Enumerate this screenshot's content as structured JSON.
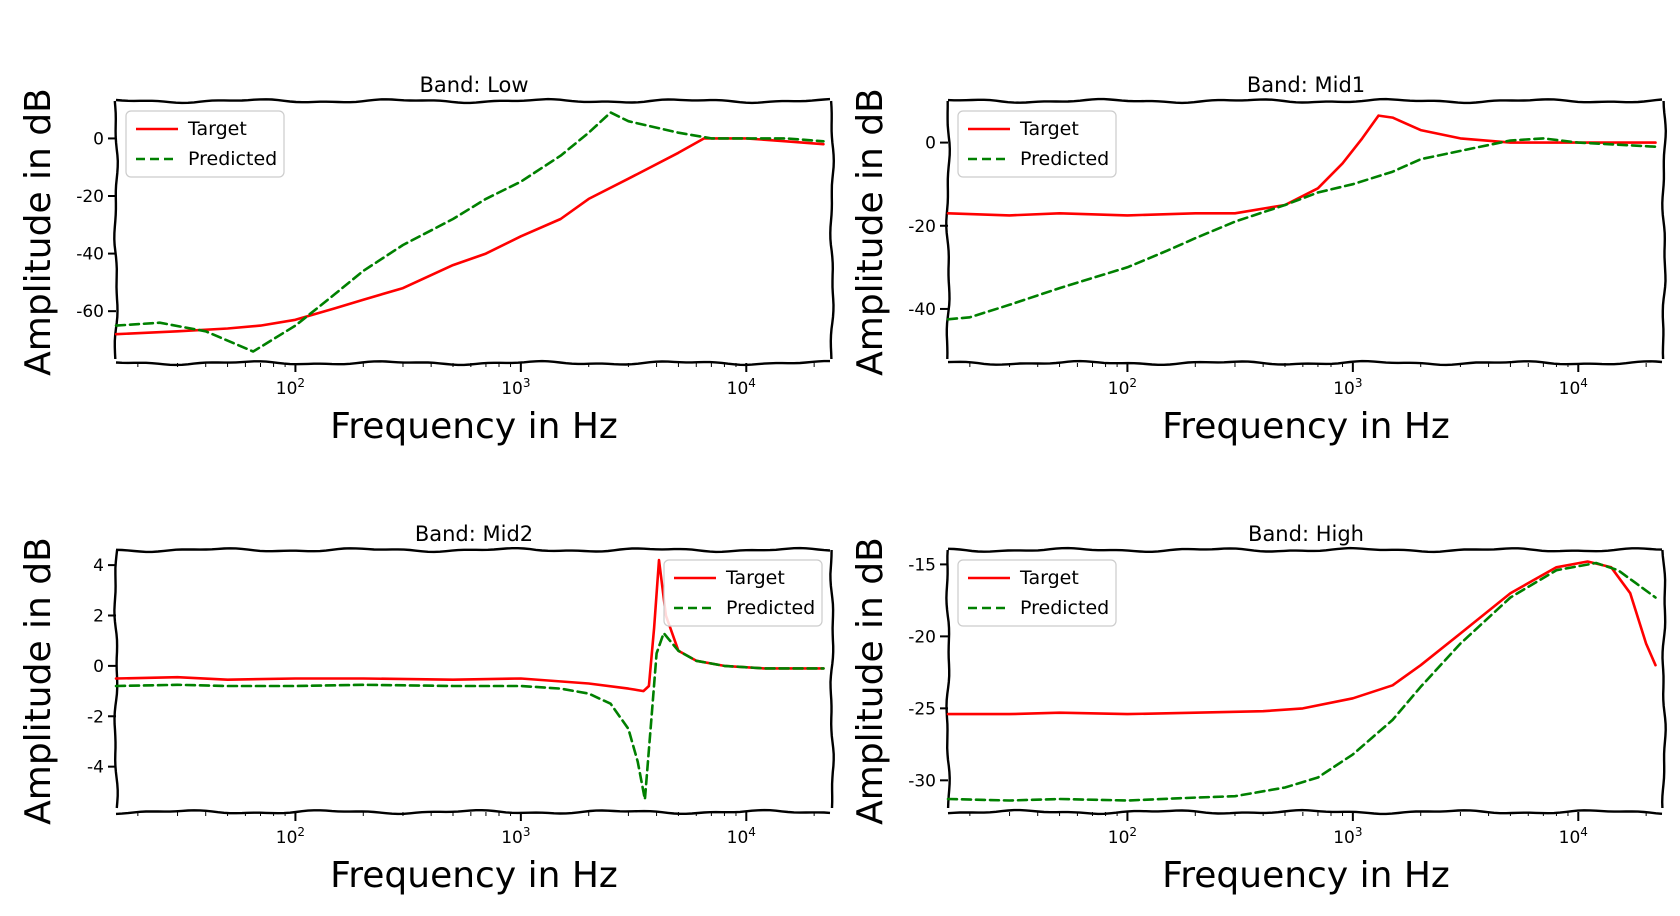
{
  "chart_data": [
    {
      "type": "line",
      "title": "Band: Low",
      "xlabel": "Frequency in Hz",
      "ylabel": "Amplitude in dB",
      "xscale": "log",
      "xlim": [
        16,
        24000
      ],
      "ylim": [
        -78,
        13
      ],
      "yticks": [
        0,
        -20,
        -40,
        -60
      ],
      "ytick_labels": [
        "0",
        "-20",
        "-40",
        "-60"
      ],
      "xticks": [
        100,
        1000,
        10000
      ],
      "xtick_labels": [
        "10",
        "10",
        "10"
      ],
      "xtick_exponents": [
        "2",
        "3",
        "4"
      ],
      "legend": {
        "position": "upper left",
        "entries": [
          "Target",
          "Predicted"
        ]
      },
      "series": [
        {
          "name": "Target",
          "color": "#ff0000",
          "style": "solid",
          "x": [
            16,
            30,
            50,
            70,
            100,
            150,
            200,
            300,
            500,
            700,
            1000,
            1500,
            2000,
            3000,
            5000,
            6500,
            8000,
            10000,
            15000,
            22000
          ],
          "y": [
            -68,
            -67,
            -66,
            -65,
            -63,
            -59,
            -56,
            -52,
            -44,
            -40,
            -34,
            -28,
            -21,
            -14,
            -5,
            0,
            0,
            0,
            -1,
            -2
          ]
        },
        {
          "name": "Predicted",
          "color": "#008000",
          "style": "dashed",
          "x": [
            16,
            25,
            40,
            65,
            100,
            150,
            200,
            300,
            500,
            700,
            1000,
            1500,
            2000,
            2500,
            3000,
            5000,
            7000,
            10000,
            15000,
            22000
          ],
          "y": [
            -65,
            -64,
            -67,
            -74,
            -65,
            -54,
            -46,
            -37,
            -28,
            -21,
            -15,
            -6,
            2,
            9,
            6,
            2,
            0,
            0,
            0,
            -1
          ]
        }
      ]
    },
    {
      "type": "line",
      "title": "Band: Mid1",
      "xlabel": "Frequency in Hz",
      "ylabel": "Amplitude in dB",
      "xscale": "log",
      "xlim": [
        16,
        24000
      ],
      "ylim": [
        -53,
        10
      ],
      "yticks": [
        0,
        -20,
        -40
      ],
      "ytick_labels": [
        "0",
        "-20",
        "-40"
      ],
      "xticks": [
        100,
        1000,
        10000
      ],
      "xtick_labels": [
        "10",
        "10",
        "10"
      ],
      "xtick_exponents": [
        "2",
        "3",
        "4"
      ],
      "legend": {
        "position": "upper left",
        "entries": [
          "Target",
          "Predicted"
        ]
      },
      "series": [
        {
          "name": "Target",
          "color": "#ff0000",
          "style": "solid",
          "x": [
            16,
            30,
            50,
            100,
            200,
            300,
            500,
            700,
            900,
            1100,
            1300,
            1500,
            2000,
            3000,
            5000,
            8000,
            12000,
            22000
          ],
          "y": [
            -17,
            -17.5,
            -17,
            -17.5,
            -17,
            -17,
            -15,
            -11,
            -5,
            1,
            6.5,
            6,
            3,
            1,
            0,
            0,
            0,
            0
          ]
        },
        {
          "name": "Predicted",
          "color": "#008000",
          "style": "dashed",
          "x": [
            16,
            20,
            30,
            50,
            100,
            150,
            200,
            300,
            500,
            700,
            1000,
            1500,
            2000,
            3000,
            5000,
            7000,
            10000,
            15000,
            22000
          ],
          "y": [
            -42.5,
            -42,
            -39,
            -35,
            -30,
            -26,
            -23,
            -19,
            -15,
            -12,
            -10,
            -7,
            -4,
            -2,
            0.5,
            1,
            0,
            -0.5,
            -1
          ]
        }
      ]
    },
    {
      "type": "line",
      "title": "Band: Mid2",
      "xlabel": "Frequency in Hz",
      "ylabel": "Amplitude in dB",
      "xscale": "log",
      "xlim": [
        16,
        24000
      ],
      "ylim": [
        -5.8,
        4.6
      ],
      "yticks": [
        4,
        2,
        0,
        -2,
        -4
      ],
      "ytick_labels": [
        "4",
        "2",
        "0",
        "-2",
        "-4"
      ],
      "xticks": [
        100,
        1000,
        10000
      ],
      "xtick_labels": [
        "10",
        "10",
        "10"
      ],
      "xtick_exponents": [
        "2",
        "3",
        "4"
      ],
      "legend": {
        "position": "upper right",
        "entries": [
          "Target",
          "Predicted"
        ]
      },
      "series": [
        {
          "name": "Target",
          "color": "#ff0000",
          "style": "solid",
          "x": [
            16,
            30,
            50,
            100,
            200,
            500,
            1000,
            2000,
            3000,
            3500,
            3700,
            3900,
            4100,
            4400,
            5000,
            6000,
            8000,
            12000,
            22000
          ],
          "y": [
            -0.5,
            -0.45,
            -0.55,
            -0.5,
            -0.5,
            -0.55,
            -0.5,
            -0.7,
            -0.9,
            -1.0,
            -0.8,
            1.5,
            4.2,
            2.0,
            0.6,
            0.2,
            0.0,
            -0.1,
            -0.1
          ]
        },
        {
          "name": "Predicted",
          "color": "#008000",
          "style": "dashed",
          "x": [
            16,
            30,
            50,
            100,
            200,
            500,
            1000,
            1500,
            2000,
            2500,
            3000,
            3300,
            3550,
            3800,
            4000,
            4300,
            5000,
            6000,
            8000,
            12000,
            22000
          ],
          "y": [
            -0.8,
            -0.75,
            -0.8,
            -0.8,
            -0.75,
            -0.8,
            -0.8,
            -0.9,
            -1.1,
            -1.5,
            -2.5,
            -3.8,
            -5.3,
            -2.0,
            0.5,
            1.3,
            0.6,
            0.2,
            0.0,
            -0.1,
            -0.1
          ]
        }
      ]
    },
    {
      "type": "line",
      "title": "Band: High",
      "xlabel": "Frequency in Hz",
      "ylabel": "Amplitude in dB",
      "xscale": "log",
      "xlim": [
        16,
        24000
      ],
      "ylim": [
        -32.2,
        -14.0
      ],
      "yticks": [
        -15,
        -20,
        -25,
        -30
      ],
      "ytick_labels": [
        "-15",
        "-20",
        "-25",
        "-30"
      ],
      "xticks": [
        100,
        1000,
        10000
      ],
      "xtick_labels": [
        "10",
        "10",
        "10"
      ],
      "xtick_exponents": [
        "2",
        "3",
        "4"
      ],
      "legend": {
        "position": "upper left",
        "entries": [
          "Target",
          "Predicted"
        ]
      },
      "series": [
        {
          "name": "Target",
          "color": "#ff0000",
          "style": "solid",
          "x": [
            16,
            30,
            50,
            100,
            200,
            400,
            600,
            1000,
            1500,
            2000,
            3000,
            5000,
            8000,
            11000,
            14000,
            17000,
            20000,
            22000
          ],
          "y": [
            -25.4,
            -25.4,
            -25.3,
            -25.4,
            -25.3,
            -25.2,
            -25.0,
            -24.3,
            -23.4,
            -22.0,
            -19.8,
            -17.0,
            -15.2,
            -14.8,
            -15.2,
            -17.0,
            -20.5,
            -22.0
          ]
        },
        {
          "name": "Predicted",
          "color": "#008000",
          "style": "dashed",
          "x": [
            16,
            30,
            50,
            100,
            200,
            300,
            500,
            700,
            1000,
            1500,
            2000,
            3000,
            5000,
            8000,
            12000,
            15000,
            18000,
            22000
          ],
          "y": [
            -31.3,
            -31.4,
            -31.3,
            -31.4,
            -31.2,
            -31.1,
            -30.5,
            -29.8,
            -28.2,
            -25.8,
            -23.5,
            -20.5,
            -17.3,
            -15.4,
            -14.9,
            -15.4,
            -16.3,
            -17.3
          ]
        }
      ]
    }
  ]
}
